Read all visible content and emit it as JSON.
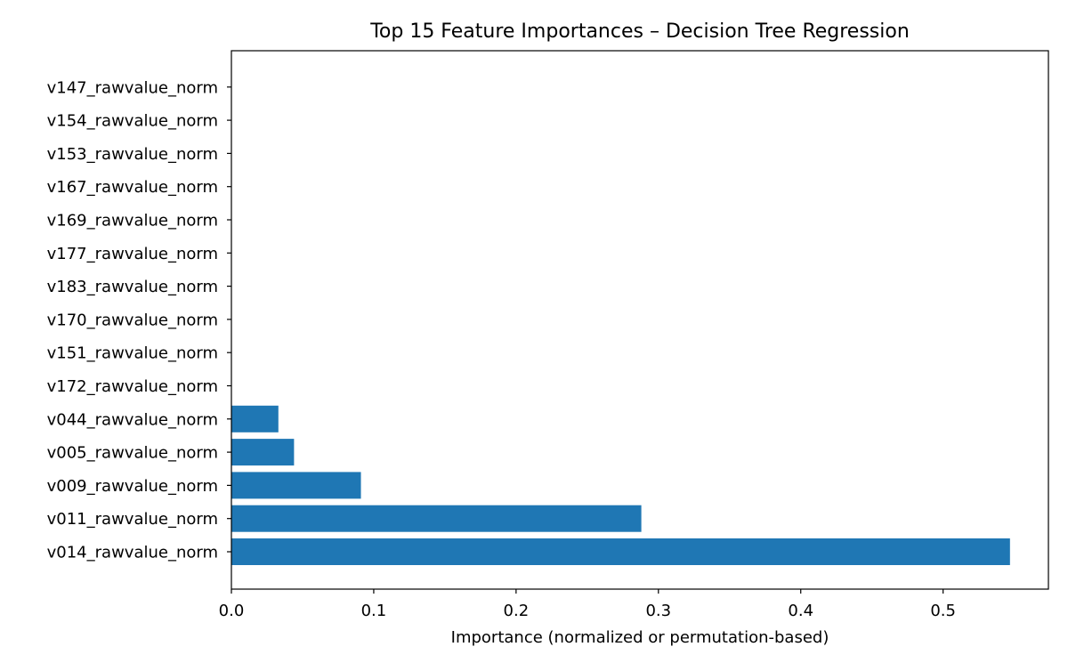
{
  "chart_data": {
    "type": "bar",
    "orientation": "horizontal",
    "title": "Top 15 Feature Importances – Decision Tree Regression",
    "xlabel": "Importance (normalized or permutation-based)",
    "ylabel": "",
    "xlim": [
      0,
      0.574
    ],
    "xticks": [
      0.0,
      0.1,
      0.2,
      0.3,
      0.4,
      0.5
    ],
    "xtick_labels": [
      "0.0",
      "0.1",
      "0.2",
      "0.3",
      "0.4",
      "0.5"
    ],
    "categories": [
      "v014_rawvalue_norm",
      "v011_rawvalue_norm",
      "v009_rawvalue_norm",
      "v005_rawvalue_norm",
      "v044_rawvalue_norm",
      "v172_rawvalue_norm",
      "v151_rawvalue_norm",
      "v170_rawvalue_norm",
      "v183_rawvalue_norm",
      "v177_rawvalue_norm",
      "v169_rawvalue_norm",
      "v167_rawvalue_norm",
      "v153_rawvalue_norm",
      "v154_rawvalue_norm",
      "v147_rawvalue_norm"
    ],
    "values": [
      0.547,
      0.288,
      0.091,
      0.044,
      0.033,
      0,
      0,
      0,
      0,
      0,
      0,
      0,
      0,
      0,
      0
    ],
    "bar_color": "#1f77b4",
    "grid": false,
    "legend": "none"
  }
}
